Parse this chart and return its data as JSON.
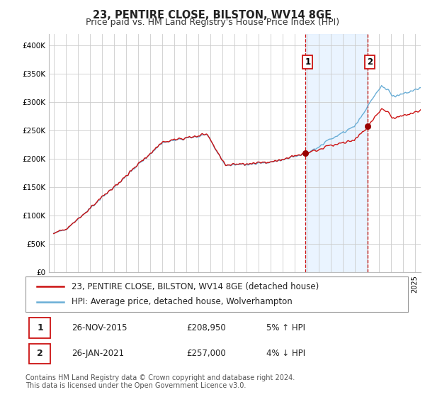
{
  "title": "23, PENTIRE CLOSE, BILSTON, WV14 8GE",
  "subtitle": "Price paid vs. HM Land Registry's House Price Index (HPI)",
  "legend_line1": "23, PENTIRE CLOSE, BILSTON, WV14 8GE (detached house)",
  "legend_line2": "HPI: Average price, detached house, Wolverhampton",
  "annotation1_num": "1",
  "annotation1_date": "26-NOV-2015",
  "annotation1_price": "£208,950",
  "annotation1_note": "5% ↑ HPI",
  "annotation2_num": "2",
  "annotation2_date": "26-JAN-2021",
  "annotation2_price": "£257,000",
  "annotation2_note": "4% ↓ HPI",
  "footer": "Contains HM Land Registry data © Crown copyright and database right 2024.\nThis data is licensed under the Open Government Licence v3.0.",
  "sale1_year": 2015.9,
  "sale1_price": 208950,
  "sale2_year": 2021.07,
  "sale2_price": 257000,
  "hpi_color": "#6aaed6",
  "house_color": "#CC1111",
  "sale_marker_color": "#990000",
  "vline_color": "#CC1111",
  "shading_color": "#ddeeff",
  "background_color": "#FFFFFF",
  "grid_color": "#CCCCCC",
  "ylim": [
    0,
    420000
  ],
  "yticks": [
    0,
    50000,
    100000,
    150000,
    200000,
    250000,
    300000,
    350000,
    400000
  ],
  "ytick_labels": [
    "£0",
    "£50K",
    "£100K",
    "£150K",
    "£200K",
    "£250K",
    "£300K",
    "£350K",
    "£400K"
  ],
  "title_fontsize": 10.5,
  "subtitle_fontsize": 9,
  "tick_fontsize": 7.5,
  "legend_fontsize": 8.5,
  "annotation_fontsize": 8.5,
  "footer_fontsize": 7
}
